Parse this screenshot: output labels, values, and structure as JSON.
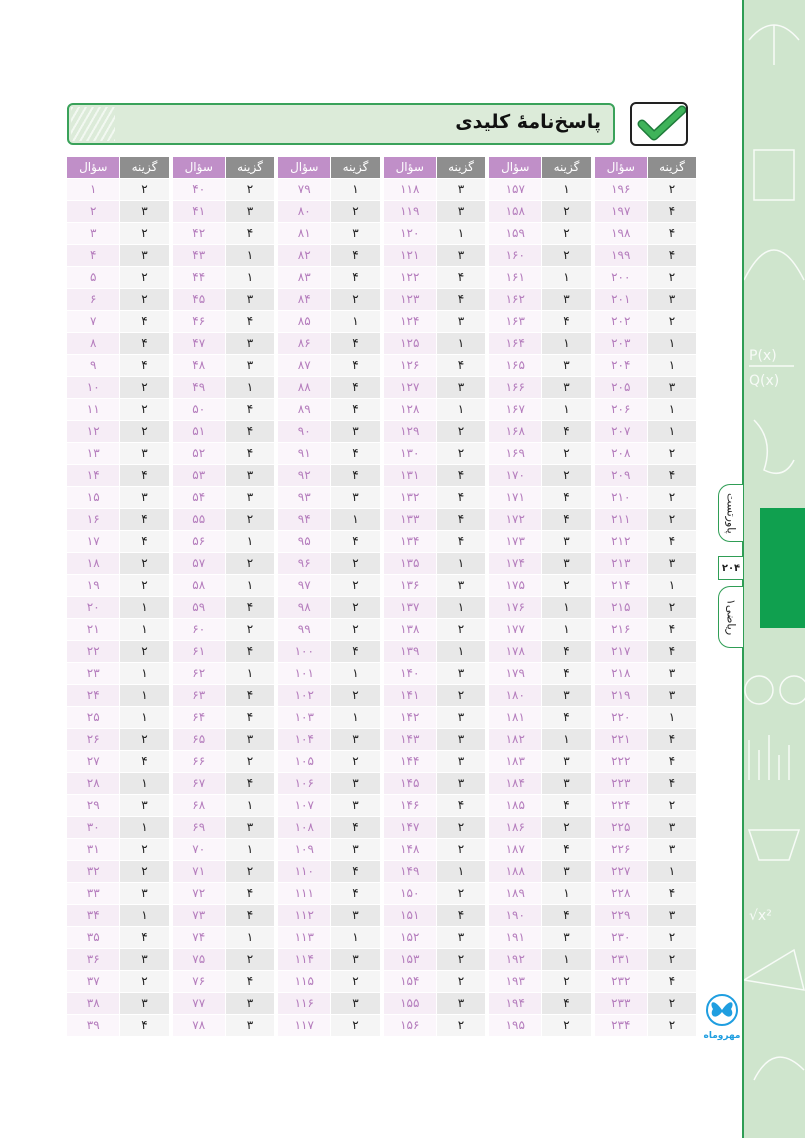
{
  "title": "پاسخ‌نامهٔ کلیدی",
  "side_tabs": {
    "series": "پاورتست",
    "page_number": "۲۰۴",
    "subject": "ریاضی۱"
  },
  "logo_text": "مهروماه",
  "icons": {
    "title_icon": "check-icon",
    "logo": "butterfly-icon"
  },
  "colors": {
    "accent_green": "#2f9d55",
    "question_header": "#c08fc8",
    "answer_header": "#8e8e8e",
    "question_text": "#b57dbd"
  },
  "table_headers": {
    "question": "سؤال",
    "answer": "گزینه"
  },
  "groups": [
    {
      "questions": [
        1,
        2,
        3,
        4,
        5,
        6,
        7,
        8,
        9,
        10,
        11,
        12,
        13,
        14,
        15,
        16,
        17,
        18,
        19,
        20,
        21,
        22,
        23,
        24,
        25,
        26,
        27,
        28,
        29,
        30,
        31,
        32,
        33,
        34,
        35,
        36,
        37,
        38,
        39
      ],
      "answers": [
        2,
        3,
        2,
        3,
        2,
        2,
        4,
        4,
        4,
        2,
        2,
        2,
        3,
        4,
        3,
        4,
        4,
        2,
        2,
        1,
        1,
        2,
        1,
        1,
        1,
        2,
        4,
        1,
        3,
        1,
        2,
        2,
        3,
        1,
        4,
        3,
        2,
        3,
        4
      ]
    },
    {
      "questions": [
        40,
        41,
        42,
        43,
        44,
        45,
        46,
        47,
        48,
        49,
        50,
        51,
        52,
        53,
        54,
        55,
        56,
        57,
        58,
        59,
        60,
        61,
        62,
        63,
        64,
        65,
        66,
        67,
        68,
        69,
        70,
        71,
        72,
        73,
        74,
        75,
        76,
        77,
        78
      ],
      "answers": [
        2,
        3,
        4,
        1,
        1,
        3,
        4,
        3,
        3,
        1,
        4,
        4,
        4,
        3,
        3,
        2,
        1,
        2,
        1,
        4,
        2,
        4,
        1,
        4,
        4,
        3,
        2,
        4,
        1,
        3,
        1,
        2,
        4,
        4,
        1,
        2,
        4,
        3,
        3
      ]
    },
    {
      "questions": [
        79,
        80,
        81,
        82,
        83,
        84,
        85,
        86,
        87,
        88,
        89,
        90,
        91,
        92,
        93,
        94,
        95,
        96,
        97,
        98,
        99,
        100,
        101,
        102,
        103,
        104,
        105,
        106,
        107,
        108,
        109,
        110,
        111,
        112,
        113,
        114,
        115,
        116,
        117
      ],
      "answers": [
        1,
        2,
        3,
        4,
        4,
        2,
        1,
        4,
        4,
        4,
        4,
        3,
        4,
        4,
        3,
        1,
        4,
        2,
        2,
        2,
        2,
        4,
        1,
        2,
        1,
        3,
        2,
        3,
        3,
        4,
        3,
        4,
        4,
        3,
        1,
        3,
        2,
        3,
        2
      ]
    },
    {
      "questions": [
        118,
        119,
        120,
        121,
        122,
        123,
        124,
        125,
        126,
        127,
        128,
        129,
        130,
        131,
        132,
        133,
        134,
        135,
        136,
        137,
        138,
        139,
        140,
        141,
        142,
        143,
        144,
        145,
        146,
        147,
        148,
        149,
        150,
        151,
        152,
        153,
        154,
        155,
        156
      ],
      "answers": [
        3,
        3,
        1,
        3,
        4,
        4,
        3,
        1,
        4,
        3,
        1,
        2,
        2,
        4,
        4,
        4,
        4,
        1,
        3,
        1,
        2,
        1,
        3,
        2,
        3,
        3,
        3,
        3,
        4,
        2,
        2,
        1,
        2,
        4,
        3,
        2,
        2,
        3,
        2
      ]
    },
    {
      "questions": [
        157,
        158,
        159,
        160,
        161,
        162,
        163,
        164,
        165,
        166,
        167,
        168,
        169,
        170,
        171,
        172,
        173,
        174,
        175,
        176,
        177,
        178,
        179,
        180,
        181,
        182,
        183,
        184,
        185,
        186,
        187,
        188,
        189,
        190,
        191,
        192,
        193,
        194,
        195
      ],
      "answers": [
        1,
        2,
        2,
        2,
        1,
        3,
        4,
        1,
        3,
        3,
        1,
        4,
        2,
        2,
        4,
        4,
        3,
        3,
        2,
        1,
        1,
        4,
        4,
        3,
        4,
        1,
        3,
        3,
        4,
        2,
        4,
        3,
        1,
        4,
        3,
        1,
        2,
        4,
        2
      ]
    },
    {
      "questions": [
        196,
        197,
        198,
        199,
        200,
        201,
        202,
        203,
        204,
        205,
        206,
        207,
        208,
        209,
        210,
        211,
        212,
        213,
        214,
        215,
        216,
        217,
        218,
        219,
        220,
        221,
        222,
        223,
        224,
        225,
        226,
        227,
        228,
        229,
        230,
        231,
        232,
        233,
        234
      ],
      "answers": [
        2,
        4,
        4,
        4,
        2,
        3,
        2,
        1,
        1,
        3,
        1,
        1,
        2,
        4,
        2,
        2,
        4,
        3,
        1,
        2,
        4,
        4,
        3,
        3,
        1,
        4,
        4,
        4,
        2,
        3,
        3,
        1,
        4,
        3,
        2,
        2,
        4,
        2,
        2
      ]
    }
  ]
}
